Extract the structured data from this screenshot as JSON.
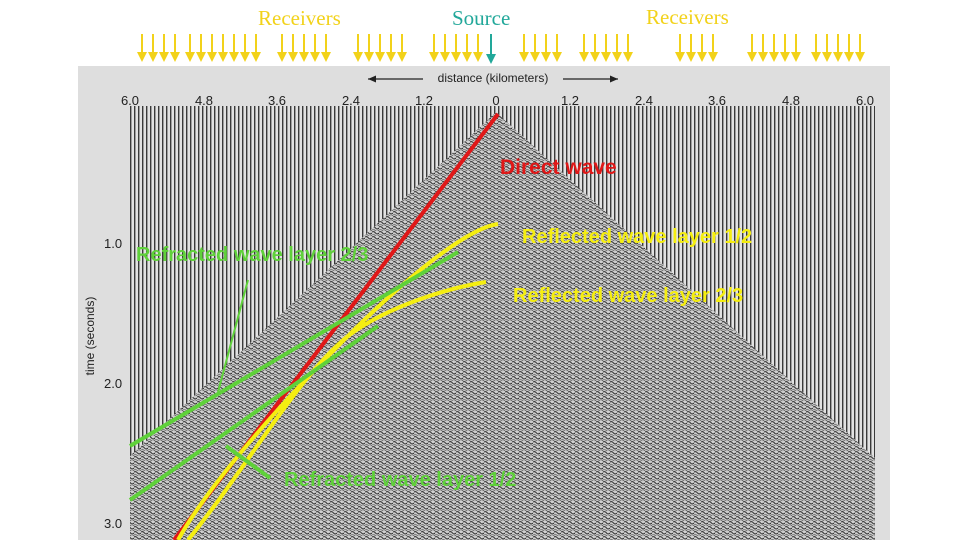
{
  "header": {
    "receivers_left": "Receivers",
    "source": "Source",
    "receivers_right": "Receivers"
  },
  "axis": {
    "x_title": "distance (kilometers)",
    "x_ticks": [
      "6.0",
      "4.8",
      "3.6",
      "2.4",
      "1.2",
      "0",
      "1.2",
      "2.4",
      "3.6",
      "4.8",
      "6.0"
    ],
    "y_title": "time (seconds)",
    "y_ticks": [
      "1.0",
      "2.0",
      "3.0"
    ]
  },
  "labels": {
    "direct_wave": "Direct wave",
    "reflected_1_2": "Reflected wave layer 1/2",
    "reflected_2_3": "Reflected wave layer 2/3",
    "refracted_2_3": "Refracted wave layer 2/3",
    "refracted_1_2": "Refracted wave layer 1/2"
  },
  "colors": {
    "receiver": "#f2d21a",
    "source": "#22a89a",
    "direct": "#e01818",
    "reflected": "#f5ee10",
    "refracted": "#5fd13a"
  }
}
